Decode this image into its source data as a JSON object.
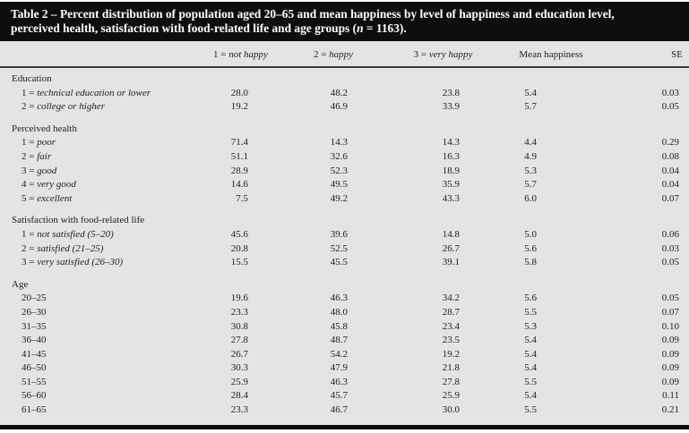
{
  "caption": {
    "line1": "Table 2 – Percent distribution of population aged 20–65 and mean happiness by level of happiness and education level,",
    "line2_before_n": "perceived health, satisfaction with food-related life and age groups (",
    "n_symbol": "n",
    "line2_after_n": " = 1163)."
  },
  "colors": {
    "band_bg": "#0d0d0d",
    "band_text": "#ffffff",
    "table_bg": "#e4e4e4",
    "text": "#212121",
    "rule": "#3a3a3a"
  },
  "columns": [
    {
      "prefix": "1 = ",
      "em": "not happy"
    },
    {
      "prefix": "2 = ",
      "em": "happy"
    },
    {
      "prefix": "3 = ",
      "em": "very happy"
    },
    {
      "prefix": "Mean happiness",
      "em": ""
    },
    {
      "prefix": "SE",
      "em": ""
    }
  ],
  "sections": [
    {
      "header": "Education",
      "rows": [
        {
          "prefix": "1 = ",
          "em": "technical education or lower",
          "values": [
            "28.0",
            "48.2",
            "23.8",
            "5.4",
            "0.03"
          ]
        },
        {
          "prefix": "2 = ",
          "em": "college or higher",
          "values": [
            "19.2",
            "46.9",
            "33.9",
            "5.7",
            "0.05"
          ]
        }
      ]
    },
    {
      "header": "Perceived health",
      "rows": [
        {
          "prefix": "1 = ",
          "em": "poor",
          "values": [
            "71.4",
            "14.3",
            "14.3",
            "4.4",
            "0.29"
          ]
        },
        {
          "prefix": "2 = ",
          "em": "fair",
          "values": [
            "51.1",
            "32.6",
            "16.3",
            "4.9",
            "0.08"
          ]
        },
        {
          "prefix": "3 = ",
          "em": "good",
          "values": [
            "28.9",
            "52.3",
            "18.9",
            "5.3",
            "0.04"
          ]
        },
        {
          "prefix": "4 = ",
          "em": "very good",
          "values": [
            "14.6",
            "49.5",
            "35.9",
            "5.7",
            "0.04"
          ]
        },
        {
          "prefix": "5 = ",
          "em": "excellent",
          "values": [
            "7.5",
            "49.2",
            "43.3",
            "6.0",
            "0.07"
          ]
        }
      ]
    },
    {
      "header": "Satisfaction with food-related life",
      "rows": [
        {
          "prefix": "1 = ",
          "em": "not satisfied (5–20)",
          "values": [
            "45.6",
            "39.6",
            "14.8",
            "5.0",
            "0.06"
          ]
        },
        {
          "prefix": "2 = ",
          "em": "satisfied (21–25)",
          "values": [
            "20.8",
            "52.5",
            "26.7",
            "5.6",
            "0.03"
          ]
        },
        {
          "prefix": "3 = ",
          "em": "very satisfied (26–30)",
          "values": [
            "15.5",
            "45.5",
            "39.1",
            "5.8",
            "0.05"
          ]
        }
      ]
    },
    {
      "header": "Age",
      "rows": [
        {
          "prefix": "20–25",
          "em": "",
          "values": [
            "19.6",
            "46.3",
            "34.2",
            "5.6",
            "0.05"
          ]
        },
        {
          "prefix": "26–30",
          "em": "",
          "values": [
            "23.3",
            "48.0",
            "28.7",
            "5.5",
            "0.07"
          ]
        },
        {
          "prefix": "31–35",
          "em": "",
          "values": [
            "30.8",
            "45.8",
            "23.4",
            "5.3",
            "0.10"
          ]
        },
        {
          "prefix": "36–40",
          "em": "",
          "values": [
            "27.8",
            "48.7",
            "23.5",
            "5.4",
            "0.09"
          ]
        },
        {
          "prefix": "41–45",
          "em": "",
          "values": [
            "26.7",
            "54.2",
            "19.2",
            "5.4",
            "0.09"
          ]
        },
        {
          "prefix": "46–50",
          "em": "",
          "values": [
            "30.3",
            "47.9",
            "21.8",
            "5.4",
            "0.09"
          ]
        },
        {
          "prefix": "51–55",
          "em": "",
          "values": [
            "25.9",
            "46.3",
            "27.8",
            "5.5",
            "0.09"
          ]
        },
        {
          "prefix": "56–60",
          "em": "",
          "values": [
            "28.4",
            "45.7",
            "25.9",
            "5.4",
            "0.11"
          ]
        },
        {
          "prefix": "61–65",
          "em": "",
          "values": [
            "23.3",
            "46.7",
            "30.0",
            "5.5",
            "0.21"
          ]
        }
      ]
    }
  ]
}
